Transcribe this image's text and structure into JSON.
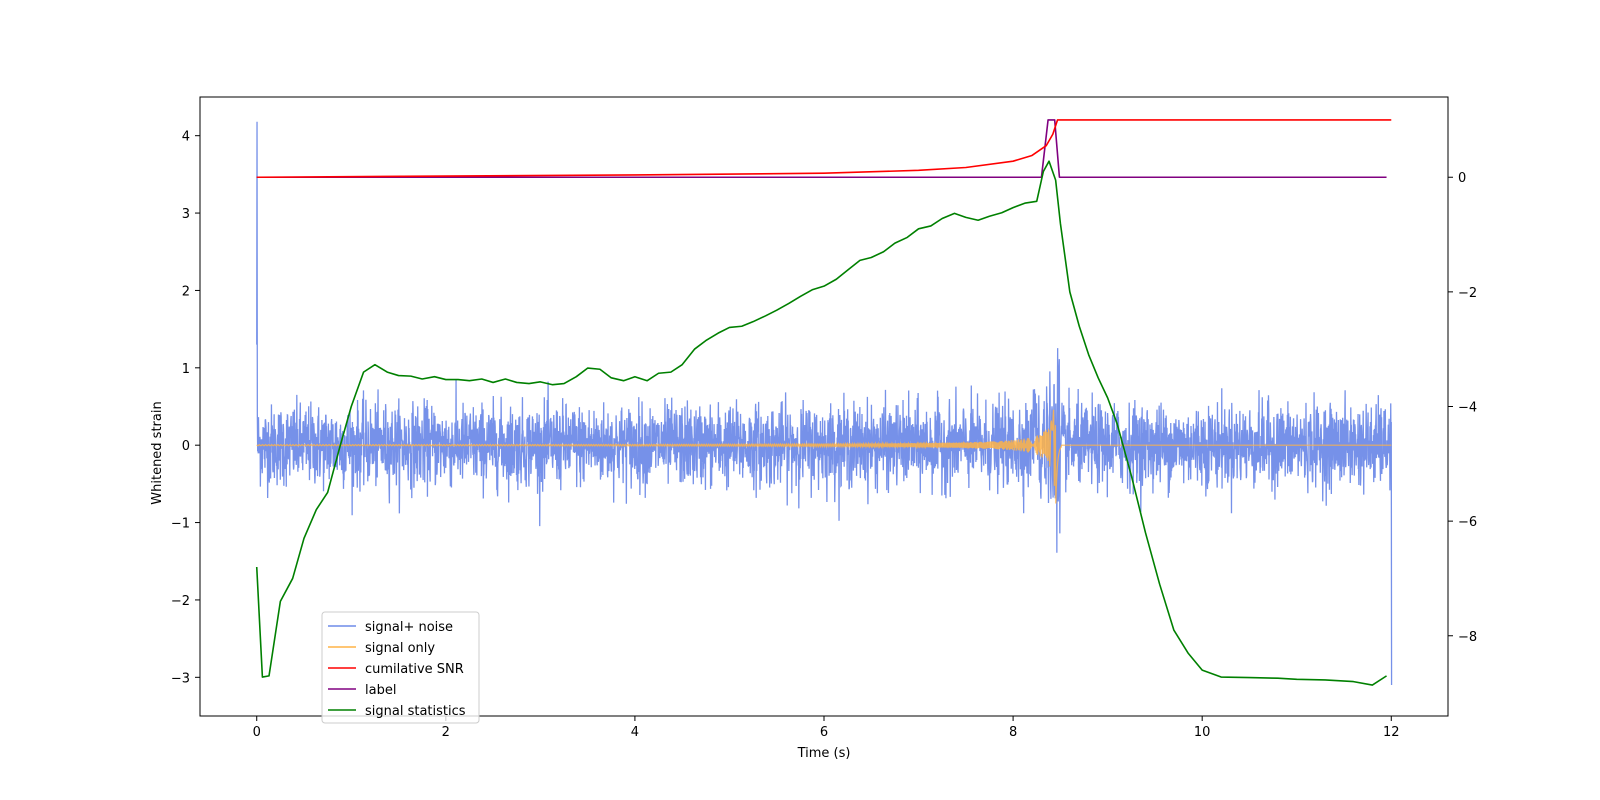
{
  "chart_data": {
    "type": "line",
    "xlabel": "Time (s)",
    "ylabel": "Whitened strain",
    "xlim": [
      -0.6,
      12.6
    ],
    "ylim_left": [
      -3.5,
      4.5
    ],
    "ylim_right": [
      -9.4,
      1.4
    ],
    "x_ticks": [
      0,
      2,
      4,
      6,
      8,
      10,
      12
    ],
    "y_ticks_left": [
      -3,
      -2,
      -1,
      0,
      1,
      2,
      3,
      4
    ],
    "y_ticks_right": [
      -8,
      -6,
      -4,
      -2,
      0
    ],
    "grid": false,
    "legend_position": "lower-left",
    "series": [
      {
        "name": "signal+ noise",
        "color": "#6f8be8",
        "axis": "left",
        "description_points": {
          "x": [
            0,
            0.005,
            0.01,
            12,
            12.005
          ],
          "y": [
            1.3,
            4.18,
            0.3,
            0.3,
            -3.1
          ]
        },
        "noise_amplitude": 0.45
      },
      {
        "name": "signal only",
        "color": "#ffb347",
        "axis": "left",
        "chirp_peak_time": 8.45,
        "peak_amplitude": 0.85
      },
      {
        "name": "cumilative SNR",
        "color": "#ff0000",
        "axis": "right",
        "x": [
          0,
          2,
          4,
          6,
          7,
          7.5,
          8,
          8.2,
          8.35,
          8.42,
          8.47,
          8.5,
          12
        ],
        "y": [
          0.0,
          0.02,
          0.04,
          0.07,
          0.12,
          0.17,
          0.28,
          0.38,
          0.55,
          0.75,
          1.0,
          1.0,
          1.0
        ]
      },
      {
        "name": "label",
        "color": "#800080",
        "axis": "right",
        "x": [
          0,
          8.3,
          8.37,
          8.44,
          8.49,
          8.54,
          11.95
        ],
        "y": [
          0,
          0,
          1,
          1,
          0,
          0,
          0
        ]
      },
      {
        "name": "signal statistics",
        "color": "#008000",
        "axis": "right",
        "x": [
          0,
          0.06,
          0.13,
          0.25,
          0.38,
          0.5,
          0.63,
          0.75,
          0.88,
          1.0,
          1.13,
          1.25,
          1.38,
          1.5,
          1.63,
          1.75,
          1.88,
          2.0,
          2.13,
          2.25,
          2.38,
          2.5,
          2.63,
          2.75,
          2.88,
          3.0,
          3.13,
          3.25,
          3.38,
          3.5,
          3.63,
          3.75,
          3.88,
          4.0,
          4.13,
          4.25,
          4.38,
          4.5,
          4.63,
          4.75,
          4.88,
          5.0,
          5.13,
          5.25,
          5.38,
          5.5,
          5.63,
          5.75,
          5.88,
          6.0,
          6.13,
          6.25,
          6.38,
          6.5,
          6.63,
          6.75,
          6.88,
          7.0,
          7.13,
          7.25,
          7.38,
          7.5,
          7.63,
          7.75,
          7.88,
          8.0,
          8.13,
          8.25,
          8.32,
          8.38,
          8.45,
          8.5,
          8.6,
          8.7,
          8.8,
          8.9,
          9.0,
          9.1,
          9.25,
          9.4,
          9.55,
          9.7,
          9.85,
          10.0,
          10.2,
          10.5,
          10.8,
          11.0,
          11.3,
          11.6,
          11.8,
          11.95
        ],
        "y": [
          -6.8,
          -8.72,
          -8.7,
          -7.4,
          -7.0,
          -6.3,
          -5.8,
          -5.5,
          -4.7,
          -4.0,
          -3.4,
          -3.27,
          -3.4,
          -3.46,
          -3.47,
          -3.52,
          -3.48,
          -3.53,
          -3.53,
          -3.55,
          -3.52,
          -3.58,
          -3.52,
          -3.58,
          -3.6,
          -3.57,
          -3.62,
          -3.6,
          -3.48,
          -3.33,
          -3.35,
          -3.5,
          -3.55,
          -3.48,
          -3.55,
          -3.42,
          -3.4,
          -3.27,
          -3.0,
          -2.85,
          -2.72,
          -2.62,
          -2.6,
          -2.52,
          -2.42,
          -2.32,
          -2.2,
          -2.08,
          -1.96,
          -1.9,
          -1.78,
          -1.62,
          -1.45,
          -1.4,
          -1.3,
          -1.15,
          -1.05,
          -0.9,
          -0.85,
          -0.72,
          -0.63,
          -0.7,
          -0.75,
          -0.68,
          -0.62,
          -0.53,
          -0.45,
          -0.42,
          0.1,
          0.28,
          -0.05,
          -0.8,
          -2.0,
          -2.6,
          -3.1,
          -3.5,
          -3.85,
          -4.3,
          -5.2,
          -6.2,
          -7.1,
          -7.9,
          -8.3,
          -8.6,
          -8.72,
          -8.73,
          -8.74,
          -8.76,
          -8.77,
          -8.8,
          -8.86,
          -8.7
        ]
      }
    ]
  }
}
